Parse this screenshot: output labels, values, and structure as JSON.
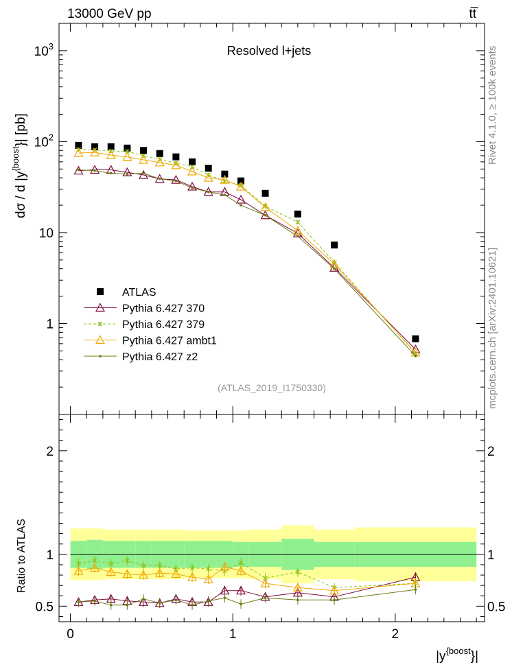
{
  "header": {
    "energy_label": "13000 GeV pp",
    "process_label": "tt̅"
  },
  "side_labels": {
    "rivet": "Rivet 4.1.0, ≥ 100k events",
    "mcplots": "mcplots.cern.ch [arXiv:2401.10621]"
  },
  "colors": {
    "atlas": "#000000",
    "p370": "#7a0a3a",
    "p379": "#8cc21a",
    "ambt1": "#f0a800",
    "z2": "#6b7a12",
    "band_inner": "#90f090",
    "band_outer": "#ffff99"
  },
  "chart_data": [
    {
      "type": "scatter",
      "panel": "main",
      "title": "Resolved l+jets",
      "analysis_label": "(ATLAS_2019_I1750330)",
      "xlabel": "|y^{boost}|",
      "ylabel": "dσ / d |y^{boost}| [pb]",
      "ylabel_parts": {
        "pre": "dσ / d |y",
        "sup": "{boost",
        "post": "}| [pb]"
      },
      "xlabel_parts": {
        "pre": "|y",
        "sup": "{boost",
        "post": "}|"
      },
      "yscale": "log",
      "xlim": [
        -0.07,
        2.55
      ],
      "ylim": [
        0.1,
        2000
      ],
      "yticks": [
        {
          "value": 1000,
          "base": "10",
          "exp": "3"
        },
        {
          "value": 100,
          "base": "10",
          "exp": "2"
        },
        {
          "value": 10,
          "base": "10",
          "exp": ""
        },
        {
          "value": 1,
          "base": "1",
          "exp": ""
        }
      ],
      "x": [
        0.05,
        0.15,
        0.25,
        0.35,
        0.45,
        0.55,
        0.65,
        0.75,
        0.85,
        0.95,
        1.05,
        1.2,
        1.4,
        1.625,
        2.125
      ],
      "legend_position": "lower-left",
      "series": [
        {
          "name": "ATLAS",
          "key": "atlas",
          "style": "square",
          "values": [
            91,
            88,
            88,
            85,
            80,
            74,
            68,
            60,
            51,
            44,
            37,
            27,
            16,
            7.3,
            0.68
          ]
        },
        {
          "name": "Pythia 6.427 370",
          "key": "p370",
          "style": "triangle-solid",
          "values": [
            48,
            49,
            49,
            46,
            43,
            39,
            38,
            32,
            28,
            28,
            23,
            15.5,
            9.8,
            4.1,
            0.52
          ]
        },
        {
          "name": "Pythia 6.427 379",
          "key": "p379",
          "style": "star-dashed",
          "values": [
            82,
            81,
            79,
            78,
            70,
            64,
            58,
            53,
            43,
            37,
            33,
            19.5,
            13,
            4.7,
            0.47
          ]
        },
        {
          "name": "Pythia 6.427 ambt1",
          "key": "ambt1",
          "style": "triangle-solid",
          "values": [
            75,
            76,
            71,
            68,
            63,
            59,
            55,
            47,
            40,
            38,
            32,
            19,
            10.5,
            4.5,
            0.48
          ]
        },
        {
          "name": "Pythia 6.427 z2",
          "key": "z2",
          "style": "dot-solid",
          "values": [
            49,
            48,
            45,
            44,
            45,
            39,
            37,
            31,
            28,
            26,
            20,
            15.5,
            9.1,
            4.0,
            0.44
          ]
        }
      ]
    },
    {
      "type": "line",
      "panel": "ratio",
      "ylabel": "Ratio to ATLAS",
      "xlim": [
        -0.07,
        2.55
      ],
      "ylim": [
        0.35,
        2.35
      ],
      "yticks": [
        0.5,
        1,
        2
      ],
      "xticks": [
        0,
        1,
        2
      ],
      "x": [
        0.05,
        0.15,
        0.25,
        0.35,
        0.45,
        0.55,
        0.65,
        0.75,
        0.85,
        0.95,
        1.05,
        1.2,
        1.4,
        1.625,
        2.125
      ],
      "bin_edges": [
        0,
        0.1,
        0.2,
        0.3,
        0.4,
        0.5,
        0.6,
        0.7,
        0.8,
        0.9,
        1.0,
        1.1,
        1.3,
        1.5,
        1.75,
        2.5
      ],
      "band_inner": [
        0.13,
        0.14,
        0.13,
        0.13,
        0.13,
        0.13,
        0.13,
        0.13,
        0.13,
        0.13,
        0.12,
        0.12,
        0.15,
        0.12,
        0.12
      ],
      "band_outer": [
        0.25,
        0.25,
        0.24,
        0.24,
        0.24,
        0.24,
        0.24,
        0.23,
        0.23,
        0.23,
        0.23,
        0.24,
        0.28,
        0.24,
        0.26
      ],
      "series": [
        {
          "name": "Pythia 6.427 370",
          "key": "p370",
          "values": [
            0.54,
            0.56,
            0.57,
            0.55,
            0.54,
            0.53,
            0.57,
            0.54,
            0.54,
            0.65,
            0.65,
            0.59,
            0.63,
            0.59,
            0.78
          ]
        },
        {
          "name": "Pythia 6.427 379",
          "key": "p379",
          "values": [
            0.91,
            0.94,
            0.91,
            0.94,
            0.89,
            0.89,
            0.86,
            0.87,
            0.86,
            0.84,
            0.92,
            0.77,
            0.83,
            0.68,
            0.72
          ]
        },
        {
          "name": "Pythia 6.427 ambt1",
          "key": "ambt1",
          "values": [
            0.84,
            0.87,
            0.83,
            0.81,
            0.8,
            0.82,
            0.81,
            0.78,
            0.76,
            0.88,
            0.84,
            0.72,
            0.68,
            0.65,
            0.72
          ]
        },
        {
          "name": "Pythia 6.427 z2",
          "key": "z2",
          "values": [
            0.54,
            0.55,
            0.51,
            0.51,
            0.57,
            0.53,
            0.56,
            0.51,
            0.55,
            0.58,
            0.52,
            0.58,
            0.56,
            0.56,
            0.66
          ]
        }
      ]
    }
  ]
}
